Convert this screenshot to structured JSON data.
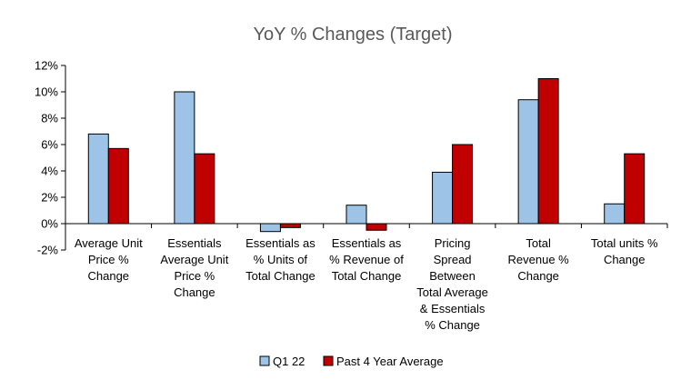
{
  "chart_data": {
    "type": "bar",
    "title": "YoY % Changes (Target)",
    "xlabel": "",
    "ylabel": "",
    "ylim": [
      -2,
      12
    ],
    "yticks": [
      -2,
      0,
      2,
      4,
      6,
      8,
      10,
      12
    ],
    "ytick_labels": [
      "-2%",
      "0%",
      "2%",
      "4%",
      "6%",
      "8%",
      "10%",
      "12%"
    ],
    "grid": false,
    "legend_position": "bottom",
    "categories": [
      [
        "Average Unit",
        "Price %",
        "Change"
      ],
      [
        "Essentials",
        "Average Unit",
        "Price %",
        "Change"
      ],
      [
        "Essentials as",
        "% Units of",
        "Total Change"
      ],
      [
        "Essentials as",
        "% Revenue of",
        "Total Change"
      ],
      [
        "Pricing",
        "Spread",
        "Between",
        "Total Average",
        "& Essentials",
        "% Change"
      ],
      [
        "Total",
        "Revenue %",
        "Change"
      ],
      [
        "Total units %",
        "Change"
      ]
    ],
    "series": [
      {
        "name": "Q1 22",
        "color": "#9DC3E6",
        "values": [
          6.8,
          10.0,
          -0.6,
          1.4,
          3.9,
          9.4,
          1.5
        ]
      },
      {
        "name": "Past 4 Year Average",
        "color": "#C00000",
        "values": [
          5.7,
          5.3,
          -0.3,
          -0.5,
          6.0,
          11.0,
          5.3
        ]
      }
    ]
  }
}
